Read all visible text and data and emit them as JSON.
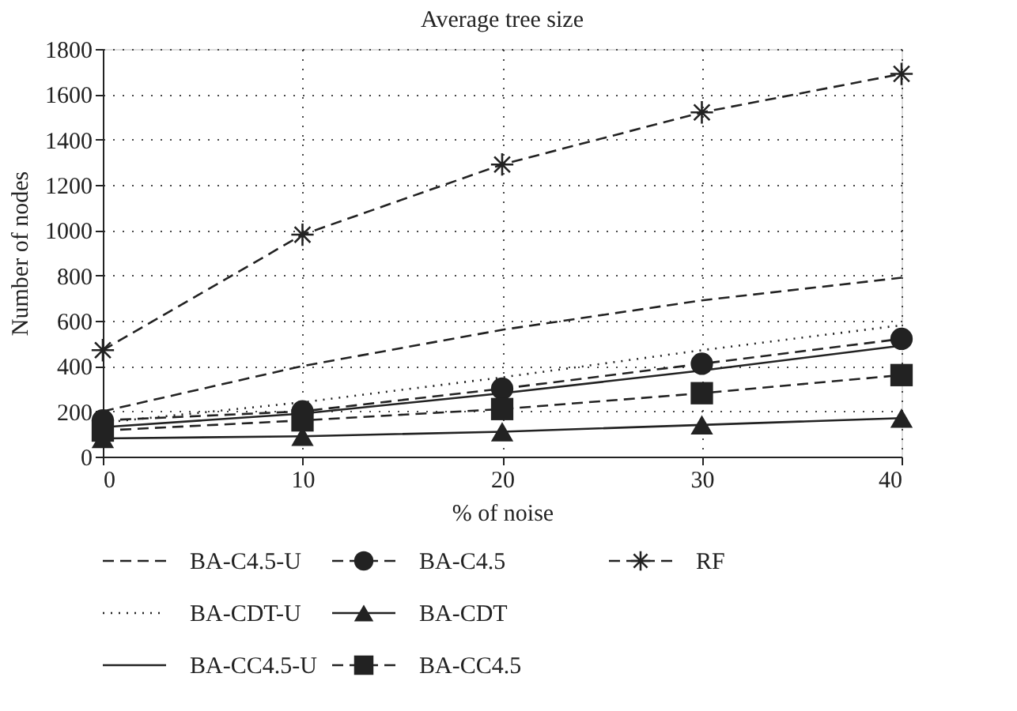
{
  "chart_data": {
    "type": "line",
    "title": "Average tree size",
    "xlabel": "% of noise",
    "ylabel": "Number of nodes",
    "x": [
      0,
      10,
      20,
      30,
      40
    ],
    "xlim": [
      0,
      40
    ],
    "xticks": [
      0,
      10,
      20,
      30,
      40
    ],
    "ylim": [
      0,
      1800
    ],
    "yticks": [
      0,
      200,
      400,
      600,
      800,
      1000,
      1200,
      1400,
      1600,
      1800
    ],
    "grid": true,
    "legend": "bottom",
    "series": [
      {
        "name": "BA-C4.5-U",
        "color": "#222222",
        "line_style": "dashed",
        "marker": "none",
        "values": [
          200,
          400,
          560,
          690,
          790
        ]
      },
      {
        "name": "BA-CDT-U",
        "color": "#222222",
        "line_style": "dotted",
        "marker": "none",
        "values": [
          150,
          240,
          350,
          470,
          580
        ]
      },
      {
        "name": "BA-CC4.5-U",
        "color": "#222222",
        "line_style": "solid",
        "marker": "none",
        "values": [
          130,
          190,
          280,
          380,
          490
        ]
      },
      {
        "name": "BA-C4.5",
        "color": "#222222",
        "line_style": "dashed",
        "marker": "circle",
        "values": [
          160,
          200,
          300,
          410,
          520
        ]
      },
      {
        "name": "BA-CDT",
        "color": "#222222",
        "line_style": "solid",
        "marker": "triangle",
        "values": [
          80,
          90,
          110,
          140,
          170
        ]
      },
      {
        "name": "BA-CC4.5",
        "color": "#222222",
        "line_style": "dashed",
        "marker": "square",
        "values": [
          115,
          160,
          210,
          280,
          360
        ]
      },
      {
        "name": "RF",
        "color": "#222222",
        "line_style": "dashed",
        "marker": "cross",
        "values": [
          470,
          980,
          1290,
          1520,
          1690
        ]
      }
    ]
  }
}
